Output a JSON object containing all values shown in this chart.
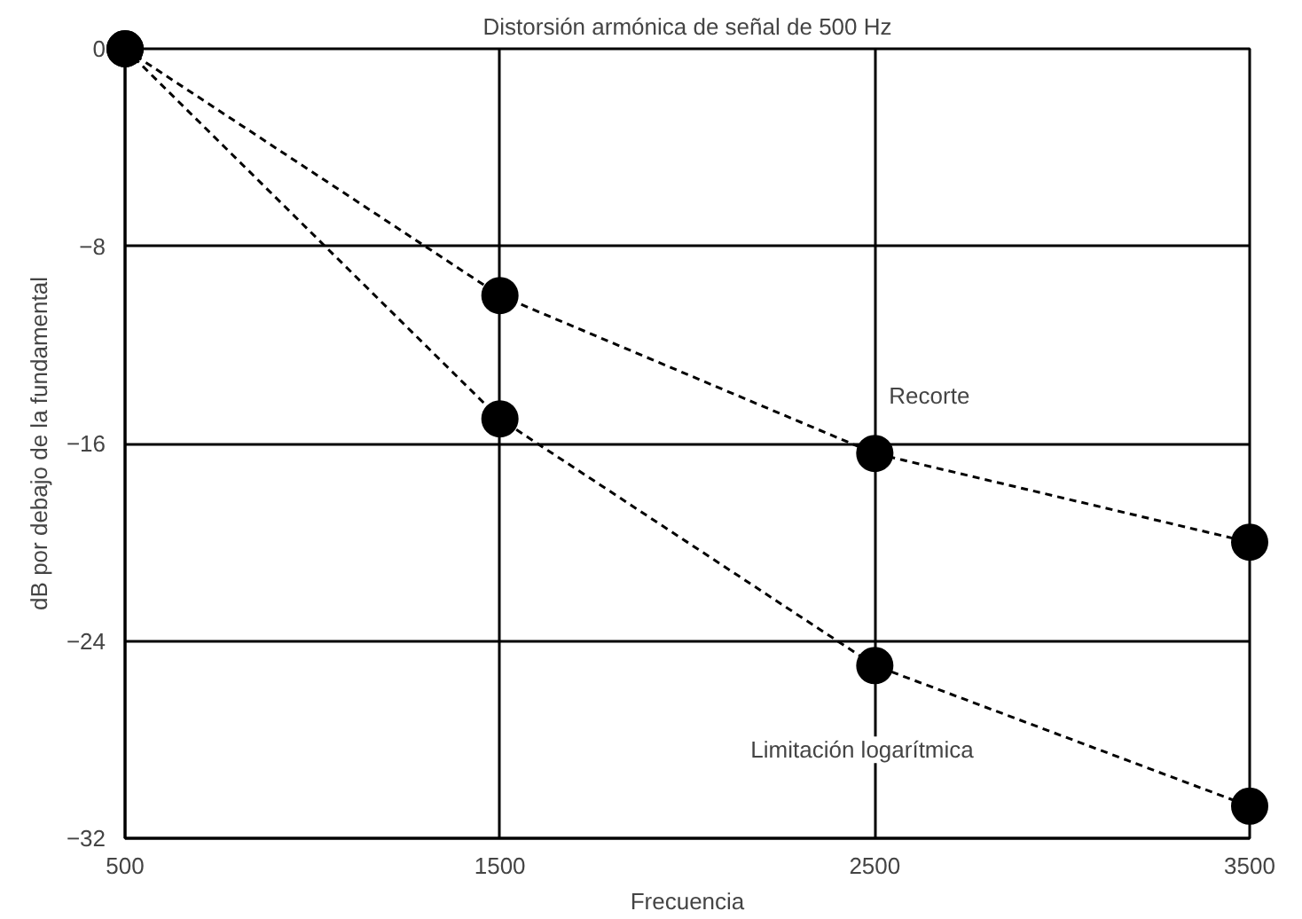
{
  "chart_data": {
    "type": "line",
    "title": "Distorsión armónica de señal de 500 Hz",
    "xlabel": "Frecuencia",
    "ylabel": "dB por debajo de la fundamental",
    "x": [
      500,
      1500,
      2500,
      3500
    ],
    "series": [
      {
        "name": "Recorte",
        "color": "#000000",
        "values": [
          0,
          -10,
          -16.4,
          -20
        ]
      },
      {
        "name": "Limitación logarítmica",
        "color": "#000000",
        "values": [
          0,
          -15,
          -25,
          -30.7
        ]
      }
    ],
    "xlim": [
      500,
      3500
    ],
    "ylim": [
      -32,
      0
    ],
    "xticks": [
      500,
      1500,
      2500,
      3500
    ],
    "yticks": [
      -32,
      -24,
      -16,
      -8,
      0
    ],
    "grid": true,
    "marker": "circle",
    "line_style": "dashed"
  }
}
